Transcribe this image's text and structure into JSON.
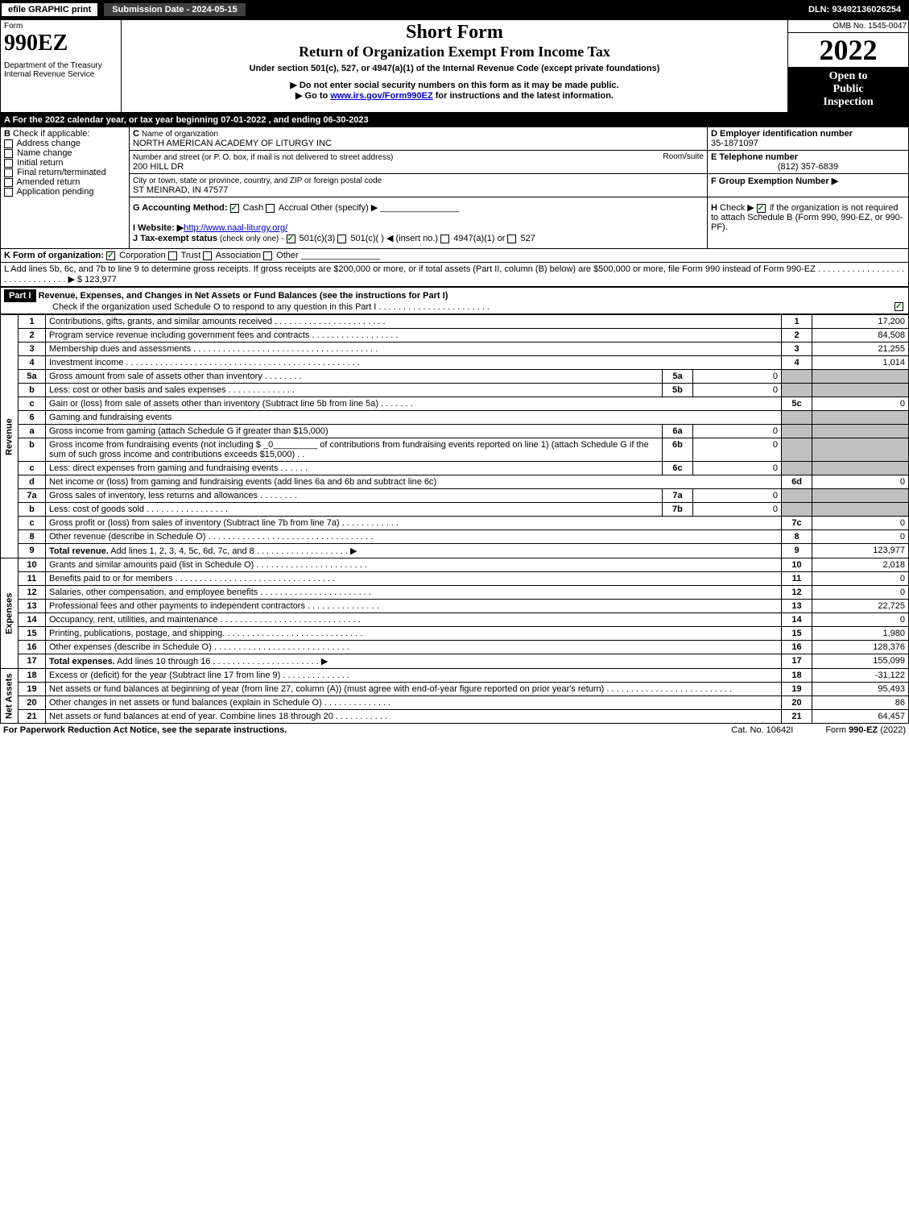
{
  "topbar": {
    "efile": "efile GRAPHIC print",
    "subdate": "Submission Date - 2024-05-15",
    "dln": "DLN: 93492136026254"
  },
  "header": {
    "form_label": "Form",
    "form_no": "990EZ",
    "dept": "Department of the Treasury",
    "irs": "Internal Revenue Service",
    "title1": "Short Form",
    "title2": "Return of Organization Exempt From Income Tax",
    "title3": "Under section 501(c), 527, or 4947(a)(1) of the Internal Revenue Code (except private foundations)",
    "bullet1": "▶ Do not enter social security numbers on this form as it may be made public.",
    "bullet2": "▶ Go to www.irs.gov/Form990EZ for instructions and the latest information.",
    "omb": "OMB No. 1545-0047",
    "year": "2022",
    "open1": "Open to",
    "open2": "Public",
    "open3": "Inspection"
  },
  "sectionA": {
    "A": "A  For the 2022 calendar year, or tax year beginning 07-01-2022  , and ending 06-30-2023",
    "B_label": "B",
    "B_text": "Check if applicable:",
    "B_opts": [
      "Address change",
      "Name change",
      "Initial return",
      "Final return/terminated",
      "Amended return",
      "Application pending"
    ],
    "C_label": "C",
    "C_name_lbl": "Name of organization",
    "C_name": "NORTH AMERICAN ACADEMY OF LITURGY INC",
    "C_street_lbl": "Number and street (or P. O. box, if mail is not delivered to street address)",
    "C_street": "200 HILL DR",
    "C_room_lbl": "Room/suite",
    "C_city_lbl": "City or town, state or province, country, and ZIP or foreign postal code",
    "C_city": "ST MEINRAD, IN  47577",
    "D_label": "D Employer identification number",
    "D_val": "35-1871097",
    "E_label": "E Telephone number",
    "E_val": "(812) 357-6839",
    "F_label": "F Group Exemption Number  ▶",
    "G_label": "G Accounting Method:",
    "G_cash": "Cash",
    "G_accrual": "Accrual",
    "G_other": "Other (specify) ▶",
    "H_label": "H",
    "H_text": "Check ▶",
    "H_rest": "if the organization is not required to attach Schedule B (Form 990, 990-EZ, or 990-PF).",
    "I_label": "I Website: ▶",
    "I_val": "http://www.naal-liturgy.org/",
    "J_label": "J Tax-exempt status",
    "J_hint": "(check only one) -",
    "J_501c3": "501(c)(3)",
    "J_501c": "501(c)(   ) ◀ (insert no.)",
    "J_4947": "4947(a)(1) or",
    "J_527": "527",
    "K_label": "K Form of organization:",
    "K_opts": [
      "Corporation",
      "Trust",
      "Association",
      "Other"
    ],
    "L_text": "L Add lines 5b, 6c, and 7b to line 9 to determine gross receipts. If gross receipts are $200,000 or more, or if total assets (Part II, column (B) below) are $500,000 or more, file Form 990 instead of Form 990-EZ . . . . . . . . . . . . . . . . . . . . . . . . . . . . . . . ▶ $",
    "L_val": "123,977"
  },
  "partI": {
    "hdr": "Part I",
    "title": "Revenue, Expenses, and Changes in Net Assets or Fund Balances (see the instructions for Part I)",
    "check_line": "Check if the organization used Schedule O to respond to any question in this Part I . . . . . . . . . . . . . . . . . . . . . . ."
  },
  "groups": {
    "revenue": "Revenue",
    "expenses": "Expenses",
    "netassets": "Net Assets"
  },
  "lines": [
    {
      "n": "1",
      "d": "Contributions, gifts, grants, and similar amounts received . . . . . . . . . . . . . . . . . . . . . . .",
      "box": "1",
      "v": "17,200"
    },
    {
      "n": "2",
      "d": "Program service revenue including government fees and contracts . . . . . . . . . . . . . . . . . .",
      "box": "2",
      "v": "84,508"
    },
    {
      "n": "3",
      "d": "Membership dues and assessments . . . . . . . . . . . . . . . . . . . . . . . . . . . . . . . . . . . . . .",
      "box": "3",
      "v": "21,255"
    },
    {
      "n": "4",
      "d": "Investment income . . . . . . . . . . . . . . . . . . . . . . . . . . . . . . . . . . . . . . . . . . . . . . . .",
      "box": "4",
      "v": "1,014"
    },
    {
      "n": "5a",
      "d": "Gross amount from sale of assets other than inventory . . . . . . . .",
      "ibox": "5a",
      "iv": "0"
    },
    {
      "n": "b",
      "d": "Less: cost or other basis and sales expenses . . . . . . . . . . . . . .",
      "ibox": "5b",
      "iv": "0"
    },
    {
      "n": "c",
      "d": "Gain or (loss) from sale of assets other than inventory (Subtract line 5b from line 5a) . . . . . . .",
      "box": "5c",
      "v": "0"
    },
    {
      "n": "6",
      "d": "Gaming and fundraising events"
    },
    {
      "n": "a",
      "d": "Gross income from gaming (attach Schedule G if greater than $15,000)",
      "ibox": "6a",
      "iv": "0"
    },
    {
      "n": "b",
      "d": "Gross income from fundraising events (not including $ _0_________ of contributions from fundraising events reported on line 1) (attach Schedule G if the sum of such gross income and contributions exceeds $15,000)   . .",
      "ibox": "6b",
      "iv": "0"
    },
    {
      "n": "c",
      "d": "Less: direct expenses from gaming and fundraising events . . . . . .",
      "ibox": "6c",
      "iv": "0"
    },
    {
      "n": "d",
      "d": "Net income or (loss) from gaming and fundraising events (add lines 6a and 6b and subtract line 6c)",
      "box": "6d",
      "v": "0"
    },
    {
      "n": "7a",
      "d": "Gross sales of inventory, less returns and allowances . . . . . . . .",
      "ibox": "7a",
      "iv": "0"
    },
    {
      "n": "b",
      "d": "Less: cost of goods sold       . . . . . . . . . . . . . . . . .",
      "ibox": "7b",
      "iv": "0"
    },
    {
      "n": "c",
      "d": "Gross profit or (loss) from sales of inventory (Subtract line 7b from line 7a)  . . . . . . . . . . . .",
      "box": "7c",
      "v": "0"
    },
    {
      "n": "8",
      "d": "Other revenue (describe in Schedule O) . . . . . . . . . . . . . . . . . . . . . . . . . . . . . . . . . .",
      "box": "8",
      "v": "0"
    },
    {
      "n": "9",
      "d": "Total revenue. Add lines 1, 2, 3, 4, 5c, 6d, 7c, and 8  . . . . . . . . . . . . . . . . . . .  ▶",
      "box": "9",
      "v": "123,977",
      "bold": true
    }
  ],
  "exp_lines": [
    {
      "n": "10",
      "d": "Grants and similar amounts paid (list in Schedule O) . . . . . . . . . . . . . . . . . . . . . . .",
      "box": "10",
      "v": "2,018"
    },
    {
      "n": "11",
      "d": "Benefits paid to or for members    . . . . . . . . . . . . . . . . . . . . . . . . . . . . . . . . .",
      "box": "11",
      "v": "0"
    },
    {
      "n": "12",
      "d": "Salaries, other compensation, and employee benefits . . . . . . . . . . . . . . . . . . . . . . .",
      "box": "12",
      "v": "0"
    },
    {
      "n": "13",
      "d": "Professional fees and other payments to independent contractors . . . . . . . . . . . . . . .",
      "box": "13",
      "v": "22,725"
    },
    {
      "n": "14",
      "d": "Occupancy, rent, utilities, and maintenance . . . . . . . . . . . . . . . . . . . . . . . . . . . . .",
      "box": "14",
      "v": "0"
    },
    {
      "n": "15",
      "d": "Printing, publications, postage, and shipping. . . . . . . . . . . . . . . . . . . . . . . . . . . . .",
      "box": "15",
      "v": "1,980"
    },
    {
      "n": "16",
      "d": "Other expenses (describe in Schedule O)    . . . . . . . . . . . . . . . . . . . . . . . . . . . .",
      "box": "16",
      "v": "128,376"
    },
    {
      "n": "17",
      "d": "Total expenses. Add lines 10 through 16    . . . . . . . . . . . . . . . . . . . . . .  ▶",
      "box": "17",
      "v": "155,099",
      "bold": true
    }
  ],
  "na_lines": [
    {
      "n": "18",
      "d": "Excess or (deficit) for the year (Subtract line 17 from line 9)        . . . . . . . . . . . . . .",
      "box": "18",
      "v": "-31,122"
    },
    {
      "n": "19",
      "d": "Net assets or fund balances at beginning of year (from line 27, column (A)) (must agree with end-of-year figure reported on prior year's return) . . . . . . . . . . . . . . . . . . . . . . . . . .",
      "box": "19",
      "v": "95,493"
    },
    {
      "n": "20",
      "d": "Other changes in net assets or fund balances (explain in Schedule O) . . . . . . . . . . . . . .",
      "box": "20",
      "v": "86"
    },
    {
      "n": "21",
      "d": "Net assets or fund balances at end of year. Combine lines 18 through 20 . . . . . . . . . . .",
      "box": "21",
      "v": "64,457"
    }
  ],
  "footer": {
    "l": "For Paperwork Reduction Act Notice, see the separate instructions.",
    "m": "Cat. No. 10642I",
    "r": "Form 990-EZ (2022)"
  },
  "colors": {
    "black": "#000000",
    "white": "#ffffff",
    "shade": "#c0c0c0",
    "link": "#0000cc",
    "check_green": "#1a6b1a"
  }
}
